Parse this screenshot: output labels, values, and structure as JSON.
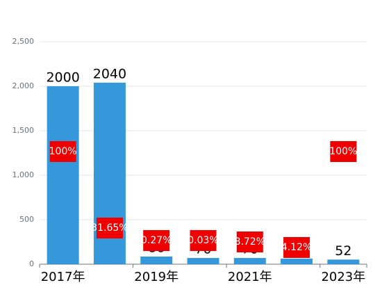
{
  "chart_data": {
    "type": "bar",
    "categories": [
      "2017年",
      null,
      "2019年",
      null,
      "2021年",
      null,
      "2023年"
    ],
    "values": [
      2000,
      2040,
      86,
      70,
      70,
      62,
      52
    ],
    "color": "#3498db",
    "ylim": [
      0,
      2500
    ],
    "yticks": [
      0,
      500,
      {
        "value": 1000,
        "label": "1,000"
      },
      {
        "value": 1500,
        "label": "1,500"
      },
      {
        "value": 2000,
        "label": "2,000"
      },
      {
        "value": 2500,
        "label": "2,500"
      }
    ],
    "grid": true,
    "annotations": [
      "100%",
      "31.65%",
      "0.27%",
      "0.03%",
      "8.72%",
      "4.12%",
      "100%"
    ],
    "annotation_color": "#ee0000"
  }
}
